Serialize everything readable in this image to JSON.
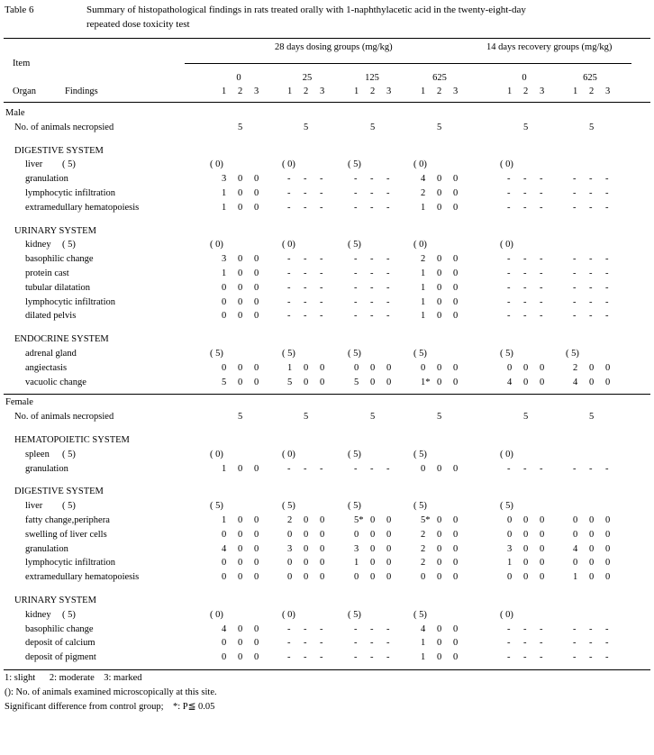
{
  "header": {
    "table_no": "Table 6",
    "title_line1": "Summary of histopathological findings in rats treated orally with 1-naphthylacetic acid in the twenty-eight-day",
    "title_line2": "repeated dose toxicity test"
  },
  "columns": {
    "item": "Item",
    "organ": "Organ",
    "findings": "Findings",
    "dosing_group_title": "28 days dosing groups (mg/kg)",
    "recovery_group_title": "14 days recovery groups (mg/kg)",
    "doses": [
      "0",
      "25",
      "125",
      "625",
      "0",
      "625"
    ],
    "grades": [
      "1",
      "2",
      "3"
    ]
  },
  "sex_labels": {
    "male": "Male",
    "female": "Female"
  },
  "necropsy_label": "No. of animals necropsied",
  "necropsy_counts": [
    "5",
    "5",
    "5",
    "5",
    "5",
    "5"
  ],
  "male": {
    "systems": [
      {
        "name": "DIGESTIVE SYSTEM",
        "organ": {
          "name": "liver",
          "n": "( 5)",
          "exam": [
            "( 0)",
            "( 0)",
            "( 5)",
            "( 0)",
            "( 0)",
            ""
          ]
        },
        "rows": [
          {
            "name": "granulation",
            "vals": [
              [
                "3",
                "0",
                "0"
              ],
              [
                "-",
                "-",
                "-"
              ],
              [
                "-",
                "-",
                "-"
              ],
              [
                "4",
                "0",
                "0"
              ],
              [
                "-",
                "-",
                "-"
              ],
              [
                "-",
                "-",
                "-"
              ]
            ]
          },
          {
            "name": "lymphocytic infiltration",
            "vals": [
              [
                "1",
                "0",
                "0"
              ],
              [
                "-",
                "-",
                "-"
              ],
              [
                "-",
                "-",
                "-"
              ],
              [
                "2",
                "0",
                "0"
              ],
              [
                "-",
                "-",
                "-"
              ],
              [
                "-",
                "-",
                "-"
              ]
            ]
          },
          {
            "name": "extramedullary hematopoiesis",
            "vals": [
              [
                "1",
                "0",
                "0"
              ],
              [
                "-",
                "-",
                "-"
              ],
              [
                "-",
                "-",
                "-"
              ],
              [
                "1",
                "0",
                "0"
              ],
              [
                "-",
                "-",
                "-"
              ],
              [
                "-",
                "-",
                "-"
              ]
            ]
          }
        ]
      },
      {
        "name": "URINARY SYSTEM",
        "organ": {
          "name": "kidney",
          "n": "( 5)",
          "exam": [
            "( 0)",
            "( 0)",
            "( 5)",
            "( 0)",
            "( 0)",
            ""
          ]
        },
        "rows": [
          {
            "name": "basophilic change",
            "vals": [
              [
                "3",
                "0",
                "0"
              ],
              [
                "-",
                "-",
                "-"
              ],
              [
                "-",
                "-",
                "-"
              ],
              [
                "2",
                "0",
                "0"
              ],
              [
                "-",
                "-",
                "-"
              ],
              [
                "-",
                "-",
                "-"
              ]
            ]
          },
          {
            "name": "protein cast",
            "vals": [
              [
                "1",
                "0",
                "0"
              ],
              [
                "-",
                "-",
                "-"
              ],
              [
                "-",
                "-",
                "-"
              ],
              [
                "1",
                "0",
                "0"
              ],
              [
                "-",
                "-",
                "-"
              ],
              [
                "-",
                "-",
                "-"
              ]
            ]
          },
          {
            "name": "tubular dilatation",
            "vals": [
              [
                "0",
                "0",
                "0"
              ],
              [
                "-",
                "-",
                "-"
              ],
              [
                "-",
                "-",
                "-"
              ],
              [
                "1",
                "0",
                "0"
              ],
              [
                "-",
                "-",
                "-"
              ],
              [
                "-",
                "-",
                "-"
              ]
            ]
          },
          {
            "name": "lymphocytic infiltration",
            "vals": [
              [
                "0",
                "0",
                "0"
              ],
              [
                "-",
                "-",
                "-"
              ],
              [
                "-",
                "-",
                "-"
              ],
              [
                "1",
                "0",
                "0"
              ],
              [
                "-",
                "-",
                "-"
              ],
              [
                "-",
                "-",
                "-"
              ]
            ]
          },
          {
            "name": "dilated pelvis",
            "vals": [
              [
                "0",
                "0",
                "0"
              ],
              [
                "-",
                "-",
                "-"
              ],
              [
                "-",
                "-",
                "-"
              ],
              [
                "1",
                "0",
                "0"
              ],
              [
                "-",
                "-",
                "-"
              ],
              [
                "-",
                "-",
                "-"
              ]
            ]
          }
        ]
      },
      {
        "name": "ENDOCRINE SYSTEM",
        "organ": {
          "name": "adrenal gland",
          "n": "",
          "exam": [
            "( 5)",
            "( 5)",
            "( 5)",
            "( 5)",
            "( 5)",
            "( 5)"
          ]
        },
        "rows": [
          {
            "name": "angiectasis",
            "vals": [
              [
                "0",
                "0",
                "0"
              ],
              [
                "1",
                "0",
                "0"
              ],
              [
                "0",
                "0",
                "0"
              ],
              [
                "0",
                "0",
                "0"
              ],
              [
                "0",
                "0",
                "0"
              ],
              [
                "2",
                "0",
                "0"
              ]
            ]
          },
          {
            "name": "vacuolic change",
            "vals": [
              [
                "5",
                "0",
                "0"
              ],
              [
                "5",
                "0",
                "0"
              ],
              [
                "5",
                "0",
                "0"
              ],
              [
                "1*",
                "0",
                "0"
              ],
              [
                "4",
                "0",
                "0"
              ],
              [
                "4",
                "0",
                "0"
              ]
            ]
          }
        ]
      }
    ]
  },
  "female": {
    "systems": [
      {
        "name": "HEMATOPOIETIC SYSTEM",
        "organ": {
          "name": "spleen",
          "n": "( 5)",
          "exam": [
            "( 0)",
            "( 0)",
            "( 5)",
            "( 5)",
            "( 0)",
            ""
          ]
        },
        "rows": [
          {
            "name": "granulation",
            "vals": [
              [
                "1",
                "0",
                "0"
              ],
              [
                "-",
                "-",
                "-"
              ],
              [
                "-",
                "-",
                "-"
              ],
              [
                "0",
                "0",
                "0"
              ],
              [
                "-",
                "-",
                "-"
              ],
              [
                "-",
                "-",
                "-"
              ]
            ]
          }
        ]
      },
      {
        "name": "DIGESTIVE SYSTEM",
        "organ": {
          "name": "liver",
          "n": "( 5)",
          "exam": [
            "( 5)",
            "( 5)",
            "( 5)",
            "( 5)",
            "( 5)",
            ""
          ]
        },
        "rows": [
          {
            "name": "fatty change,periphera",
            "vals": [
              [
                "1",
                "0",
                "0"
              ],
              [
                "2",
                "0",
                "0"
              ],
              [
                "5*",
                "0",
                "0"
              ],
              [
                "5*",
                "0",
                "0"
              ],
              [
                "0",
                "0",
                "0"
              ],
              [
                "0",
                "0",
                "0"
              ]
            ]
          },
          {
            "name": "swelling of liver cells",
            "vals": [
              [
                "0",
                "0",
                "0"
              ],
              [
                "0",
                "0",
                "0"
              ],
              [
                "0",
                "0",
                "0"
              ],
              [
                "2",
                "0",
                "0"
              ],
              [
                "0",
                "0",
                "0"
              ],
              [
                "0",
                "0",
                "0"
              ]
            ]
          },
          {
            "name": "granulation",
            "vals": [
              [
                "4",
                "0",
                "0"
              ],
              [
                "3",
                "0",
                "0"
              ],
              [
                "3",
                "0",
                "0"
              ],
              [
                "2",
                "0",
                "0"
              ],
              [
                "3",
                "0",
                "0"
              ],
              [
                "4",
                "0",
                "0"
              ]
            ]
          },
          {
            "name": "lymphocytic infiltration",
            "vals": [
              [
                "0",
                "0",
                "0"
              ],
              [
                "0",
                "0",
                "0"
              ],
              [
                "1",
                "0",
                "0"
              ],
              [
                "2",
                "0",
                "0"
              ],
              [
                "1",
                "0",
                "0"
              ],
              [
                "0",
                "0",
                "0"
              ]
            ]
          },
          {
            "name": "extramedullary hematopoiesis",
            "vals": [
              [
                "0",
                "0",
                "0"
              ],
              [
                "0",
                "0",
                "0"
              ],
              [
                "0",
                "0",
                "0"
              ],
              [
                "0",
                "0",
                "0"
              ],
              [
                "0",
                "0",
                "0"
              ],
              [
                "1",
                "0",
                "0"
              ]
            ]
          }
        ]
      },
      {
        "name": "URINARY SYSTEM",
        "organ": {
          "name": "kidney",
          "n": "( 5)",
          "exam": [
            "( 0)",
            "( 0)",
            "( 5)",
            "( 5)",
            "( 0)",
            ""
          ]
        },
        "rows": [
          {
            "name": "basophilic change",
            "vals": [
              [
                "4",
                "0",
                "0"
              ],
              [
                "-",
                "-",
                "-"
              ],
              [
                "-",
                "-",
                "-"
              ],
              [
                "4",
                "0",
                "0"
              ],
              [
                "-",
                "-",
                "-"
              ],
              [
                "-",
                "-",
                "-"
              ]
            ]
          },
          {
            "name": "deposit of calcium",
            "vals": [
              [
                "0",
                "0",
                "0"
              ],
              [
                "-",
                "-",
                "-"
              ],
              [
                "-",
                "-",
                "-"
              ],
              [
                "1",
                "0",
                "0"
              ],
              [
                "-",
                "-",
                "-"
              ],
              [
                "-",
                "-",
                "-"
              ]
            ]
          },
          {
            "name": "deposit of pigment",
            "vals": [
              [
                "0",
                "0",
                "0"
              ],
              [
                "-",
                "-",
                "-"
              ],
              [
                "-",
                "-",
                "-"
              ],
              [
                "1",
                "0",
                "0"
              ],
              [
                "-",
                "-",
                "-"
              ],
              [
                "-",
                "-",
                "-"
              ]
            ]
          }
        ]
      }
    ]
  },
  "footnotes": [
    "1: slight      2: moderate    3: marked",
    "(): No. of animals examined microscopically at this site.",
    "Significant difference from control group;    *: P≦ 0.05"
  ]
}
